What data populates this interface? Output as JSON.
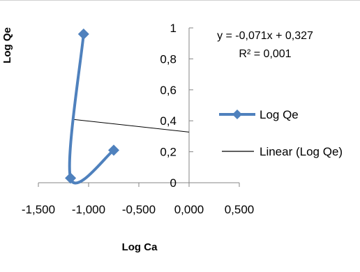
{
  "chart_data": {
    "type": "scatter",
    "xlabel": "Log Ca",
    "ylabel": "Log Qe",
    "xlim": [
      -1.5,
      0.5
    ],
    "ylim": [
      0,
      1
    ],
    "x_ticks": [
      "-1,500",
      "-1,000",
      "-0,500",
      "0,000",
      "0,500"
    ],
    "y_ticks": [
      "0",
      "0,2",
      "0,4",
      "0,6",
      "0,8",
      "1"
    ],
    "series": [
      {
        "name": "Log Qe",
        "color": "#4F81BD",
        "marker": "diamond",
        "line": "smooth",
        "points": [
          {
            "x": -1.05,
            "y": 0.96
          },
          {
            "x": -1.18,
            "y": 0.03
          },
          {
            "x": -0.75,
            "y": 0.21
          }
        ]
      }
    ],
    "trendline": {
      "name": "Linear (Log Qe)",
      "slope": -0.071,
      "intercept": 0.327,
      "equation": "y = -0,071x + 0,327",
      "r2": "R² = 0,001",
      "color": "#000000"
    },
    "legend_position": "right",
    "grid": false
  }
}
